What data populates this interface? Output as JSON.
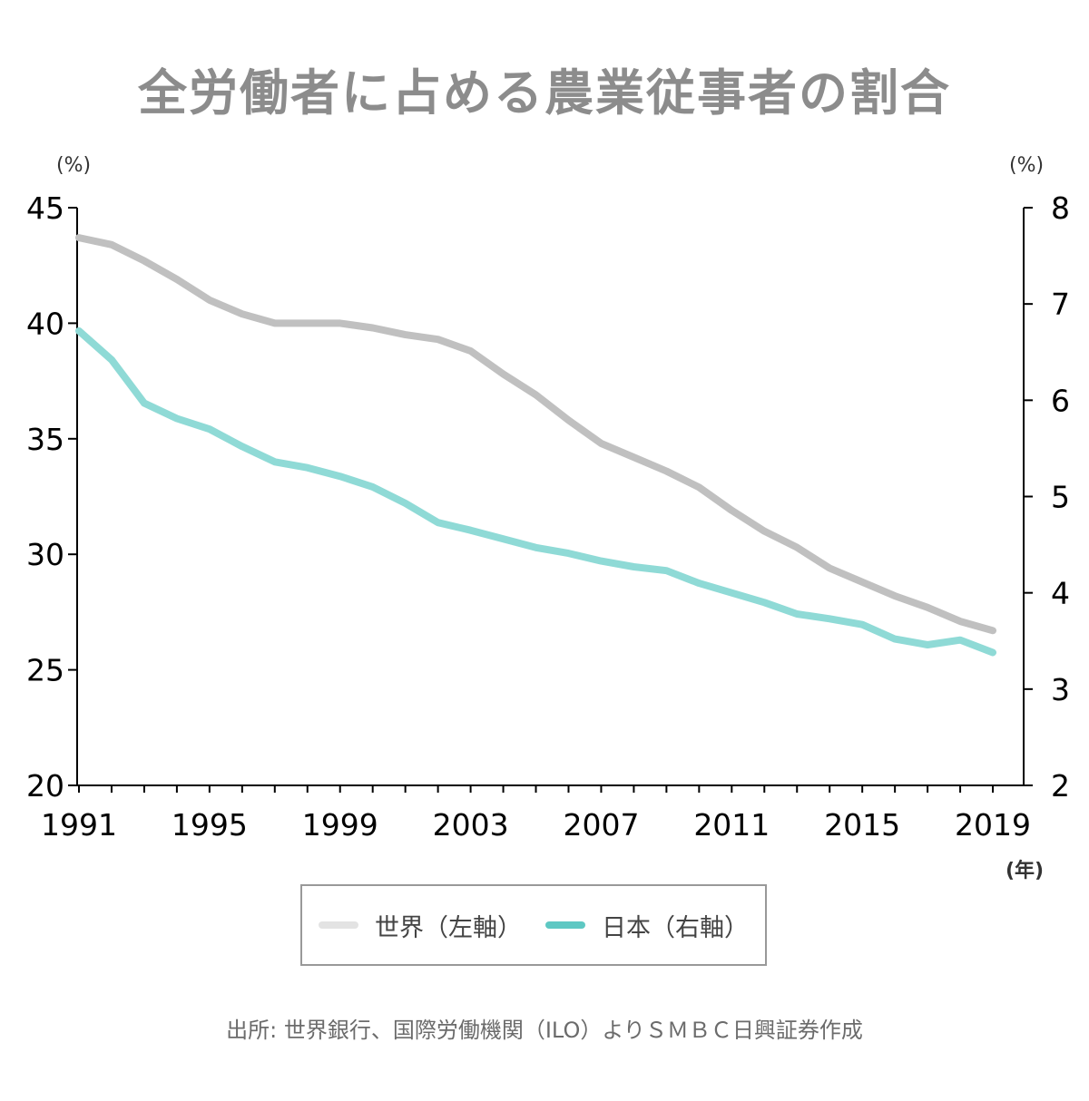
{
  "title": "全労働者に占める農業従事者の割合",
  "units": {
    "left": "(%)",
    "right": "(%)",
    "x": "(年)"
  },
  "source": "出所: 世界銀行、国際労働機関（ILO）よりＳＭＢＣ日興証券作成",
  "colors": {
    "world": "#c0c0c0",
    "japan": "#8fdad6",
    "japan_legend": "#5ec8c3",
    "axis": "#000000"
  },
  "chart_data": {
    "type": "line",
    "x_ticks": [
      "1991",
      "1995",
      "1999",
      "2003",
      "2007",
      "2011",
      "2015",
      "2019"
    ],
    "x": [
      1991,
      1992,
      1993,
      1994,
      1995,
      1996,
      1997,
      1998,
      1999,
      2000,
      2001,
      2002,
      2003,
      2004,
      2005,
      2006,
      2007,
      2008,
      2009,
      2010,
      2011,
      2012,
      2013,
      2014,
      2015,
      2016,
      2017,
      2018,
      2019
    ],
    "xlim": [
      1991,
      2020
    ],
    "y_left": {
      "lim": [
        20,
        45
      ],
      "ticks": [
        "20",
        "25",
        "30",
        "35",
        "40",
        "45"
      ]
    },
    "y_right": {
      "lim": [
        2,
        8
      ],
      "ticks": [
        "2",
        "3",
        "4",
        "5",
        "6",
        "7",
        "8"
      ]
    },
    "series": [
      {
        "name": "世界（左軸）",
        "axis": "left",
        "values": [
          43.7,
          43.4,
          42.7,
          41.9,
          41.0,
          40.4,
          40.0,
          40.0,
          40.0,
          39.8,
          39.5,
          39.3,
          38.8,
          37.8,
          36.9,
          35.8,
          34.8,
          34.2,
          33.6,
          32.9,
          31.9,
          31.0,
          30.3,
          29.4,
          28.8,
          28.2,
          27.7,
          27.1,
          26.7
        ]
      },
      {
        "name": "日本（右軸）",
        "axis": "right",
        "values": [
          6.72,
          6.42,
          5.97,
          5.81,
          5.7,
          5.52,
          5.36,
          5.3,
          5.21,
          5.1,
          4.93,
          4.73,
          4.65,
          4.56,
          4.47,
          4.41,
          4.33,
          4.27,
          4.23,
          4.1,
          4.0,
          3.9,
          3.78,
          3.73,
          3.67,
          3.52,
          3.46,
          3.51,
          3.38
        ]
      }
    ],
    "legend": "bottom-center",
    "grid": false
  }
}
